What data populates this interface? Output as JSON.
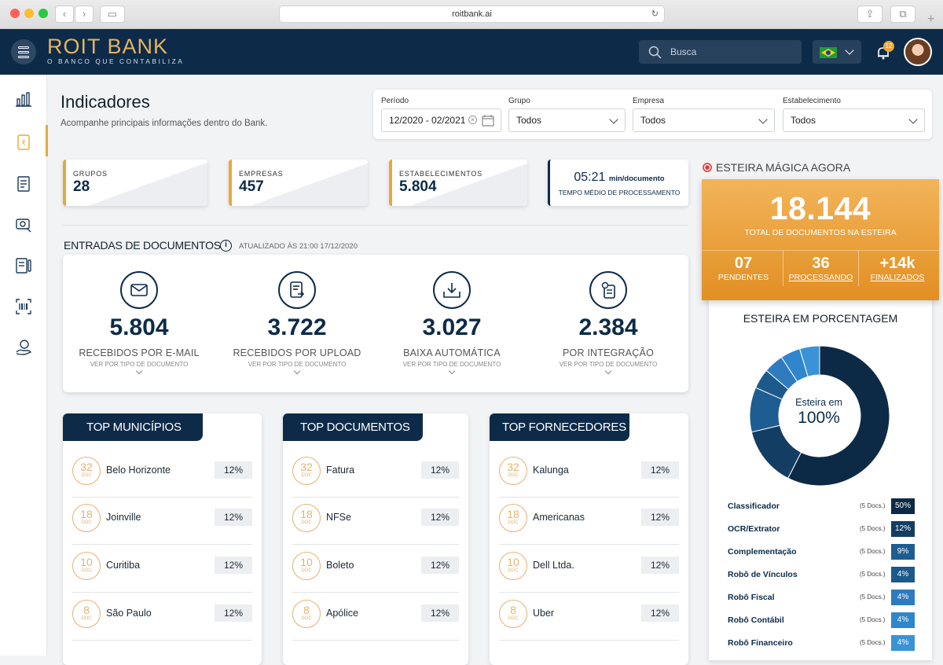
{
  "browser": {
    "url": "roitbank.ai"
  },
  "header": {
    "brand_main": "ROIT BANK",
    "brand_tagline": "O BANCO QUE CONTABILIZA",
    "search_placeholder": "Busca",
    "notification_count": "12"
  },
  "page": {
    "title": "Indicadores",
    "subtitle": "Acompanhe principais informações dentro do Bank."
  },
  "filters": {
    "periodo": {
      "label": "Período",
      "value": "12/2020 - 02/2021"
    },
    "grupo": {
      "label": "Grupo",
      "value": "Todos"
    },
    "empresa": {
      "label": "Empresa",
      "value": "Todos"
    },
    "estabelecimento": {
      "label": "Estabelecimento",
      "value": "Todos"
    }
  },
  "stats": [
    {
      "label": "GRUPOS",
      "value": "28"
    },
    {
      "label": "EMPRESAS",
      "value": "457"
    },
    {
      "label": "ESTABELECIMENTOS",
      "value": "5.804"
    }
  ],
  "tempo": {
    "value": "05:21",
    "unit": "min/documento",
    "label": "TEMPO MÉDIO DE PROCESSAMENTO"
  },
  "entradas": {
    "title": "ENTRADAS DE DOCUMENTOS",
    "updated": "ATUALIZADO ÀS 21:00 17/12/2020",
    "items": [
      {
        "value": "5.804",
        "label": "RECEBIDOS POR E-MAIL",
        "link": "VER POR TIPO DE DOCUMENTO"
      },
      {
        "value": "3.722",
        "label": "RECEBIDOS POR UPLOAD",
        "link": "VER POR TIPO DE DOCUMENTO"
      },
      {
        "value": "3.027",
        "label": "BAIXA AUTOMÁTICA",
        "link": "VER POR TIPO DE DOCUMENTO"
      },
      {
        "value": "2.384",
        "label": "POR INTEGRAÇÃO",
        "link": "VER POR TIPO DE DOCUMENTO"
      }
    ]
  },
  "top_municipios": {
    "title": "TOP MUNICÍPIOS",
    "rows": [
      {
        "count": "32",
        "unit": "DOC",
        "name": "Belo Horizonte",
        "pct": "12%"
      },
      {
        "count": "18",
        "unit": "DOC",
        "name": "Joinville",
        "pct": "12%"
      },
      {
        "count": "10",
        "unit": "DOC",
        "name": "Curitiba",
        "pct": "12%"
      },
      {
        "count": "8",
        "unit": "DOC",
        "name": "São Paulo",
        "pct": "12%"
      }
    ]
  },
  "top_documentos": {
    "title": "TOP DOCUMENTOS",
    "rows": [
      {
        "count": "32",
        "unit": "DOC",
        "name": "Fatura",
        "pct": "12%"
      },
      {
        "count": "18",
        "unit": "DOC",
        "name": "NFSe",
        "pct": "12%"
      },
      {
        "count": "10",
        "unit": "DOC",
        "name": "Boleto",
        "pct": "12%"
      },
      {
        "count": "8",
        "unit": "DOC",
        "name": "Apólice",
        "pct": "12%"
      }
    ]
  },
  "top_fornecedores": {
    "title": "TOP FORNECEDORES",
    "rows": [
      {
        "count": "32",
        "unit": "DOC",
        "name": "Kalunga",
        "pct": "12%"
      },
      {
        "count": "18",
        "unit": "DOC",
        "name": "Americanas",
        "pct": "12%"
      },
      {
        "count": "10",
        "unit": "DOC",
        "name": "Dell Ltda.",
        "pct": "12%"
      },
      {
        "count": "8",
        "unit": "DOC",
        "name": "Uber",
        "pct": "12%"
      }
    ]
  },
  "esteira": {
    "title": "ESTEIRA MÁGICA AGORA",
    "total": "18.144",
    "total_label": "TOTAL DE DOCUMENTOS NA ESTEIRA",
    "pendentes": {
      "value": "07",
      "label": "PENDENTES"
    },
    "processando": {
      "value": "36",
      "label": "PROCESSANDO"
    },
    "finalizados": {
      "value": "+14k",
      "label": "FINALIZADOS"
    },
    "pct_title": "ESTEIRA EM PORCENTAGEM",
    "donut_label1": "Esteira em",
    "donut_label2": "100%"
  },
  "chart_data": {
    "type": "pie",
    "title": "ESTEIRA EM PORCENTAGEM",
    "categories": [
      "Classificador",
      "OCR/Extrator",
      "Complementação",
      "Robô de Vínculos",
      "Robô Fiscal",
      "Robô Contábil",
      "Robô Financeiro"
    ],
    "values": [
      50,
      12,
      9,
      4,
      4,
      4,
      4
    ],
    "docs": [
      "(5 Docs.)",
      "(5 Docs.)",
      "(5 Docs.)",
      "(5 Docs.)",
      "(5 Docs.)",
      "(5 Docs.)",
      "(5 Docs.)"
    ],
    "pct_labels": [
      "50%",
      "12%",
      "9%",
      "4%",
      "4%",
      "4%",
      "4%"
    ],
    "colors": [
      "#0c2a45",
      "#143d63",
      "#1e5d92",
      "#1b5a8b",
      "#2f7bbf",
      "#2f86cc",
      "#3a93d6"
    ]
  },
  "colors": {
    "navy": "#0d2b49",
    "accent": "#e8a73c",
    "orange": "#e59a2e"
  }
}
